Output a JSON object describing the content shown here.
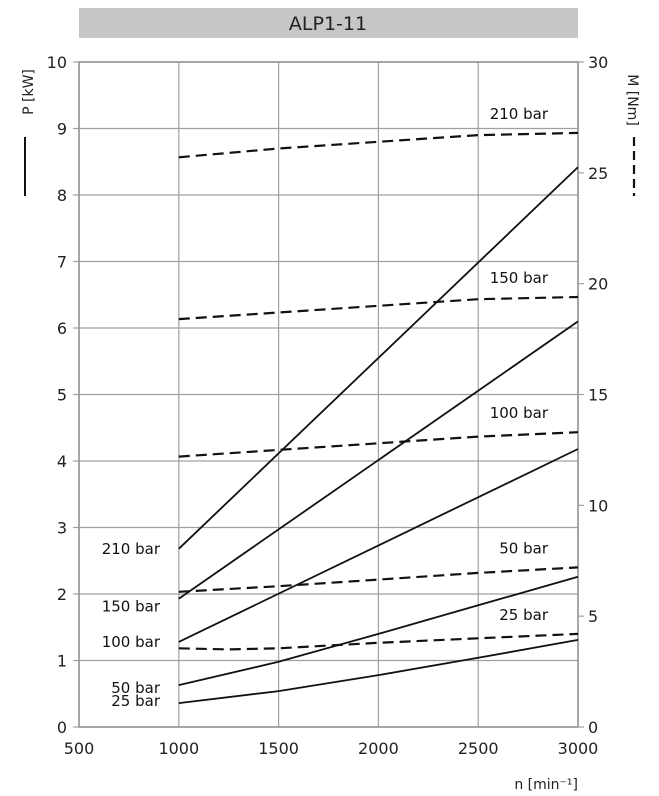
{
  "chart_data": {
    "type": "line",
    "title": "ALP1-11",
    "xlabel": "n [min⁻¹]",
    "ylabel_left": "P [kW]",
    "ylabel_right": "M [Nm]",
    "xlim": [
      500,
      3000
    ],
    "ylim_left": [
      0,
      10
    ],
    "ylim_right": [
      0,
      30
    ],
    "x_ticks": [
      500,
      1000,
      1500,
      2000,
      2500,
      3000
    ],
    "y_left_ticks": [
      0,
      1,
      2,
      3,
      4,
      5,
      6,
      7,
      8,
      9,
      10
    ],
    "y_right_ticks": [
      0,
      5,
      10,
      15,
      20,
      25,
      30
    ],
    "grid": true,
    "legend": [
      {
        "axis": "left",
        "style": "solid"
      },
      {
        "axis": "right",
        "style": "dashed"
      }
    ],
    "series": [
      {
        "name": "210 bar",
        "axis": "left",
        "style": "solid",
        "x": [
          1000,
          3000
        ],
        "values": [
          2.68,
          8.42
        ]
      },
      {
        "name": "150 bar",
        "axis": "left",
        "style": "solid",
        "x": [
          1000,
          3000
        ],
        "values": [
          1.93,
          6.1
        ]
      },
      {
        "name": "100 bar",
        "axis": "left",
        "style": "solid",
        "x": [
          1000,
          3000
        ],
        "values": [
          1.28,
          4.18
        ]
      },
      {
        "name": "50 bar",
        "axis": "left",
        "style": "solid",
        "x": [
          1000,
          1500,
          2000,
          2500,
          3000
        ],
        "values": [
          0.63,
          0.98,
          1.4,
          1.83,
          2.26
        ]
      },
      {
        "name": "25 bar",
        "axis": "left",
        "style": "solid",
        "x": [
          1000,
          1500,
          2000,
          2500,
          3000
        ],
        "values": [
          0.36,
          0.54,
          0.78,
          1.04,
          1.31
        ]
      },
      {
        "name": "210 bar",
        "axis": "right",
        "style": "dashed",
        "x": [
          1000,
          1500,
          2000,
          2500,
          3000
        ],
        "values": [
          25.7,
          26.1,
          26.4,
          26.7,
          26.8
        ]
      },
      {
        "name": "150 bar",
        "axis": "right",
        "style": "dashed",
        "x": [
          1000,
          1500,
          2000,
          2500,
          3000
        ],
        "values": [
          18.4,
          18.7,
          19.0,
          19.3,
          19.4
        ]
      },
      {
        "name": "100 bar",
        "axis": "right",
        "style": "dashed",
        "x": [
          1000,
          1500,
          2000,
          2500,
          3000
        ],
        "values": [
          12.2,
          12.5,
          12.8,
          13.1,
          13.3
        ]
      },
      {
        "name": "50 bar",
        "axis": "right",
        "style": "dashed",
        "x": [
          1000,
          1500,
          2000,
          2500,
          3000
        ],
        "values": [
          6.1,
          6.35,
          6.65,
          6.95,
          7.2
        ]
      },
      {
        "name": "25 bar",
        "axis": "right",
        "style": "dashed",
        "x": [
          1000,
          1250,
          1500,
          2000,
          2500,
          3000
        ],
        "values": [
          3.55,
          3.5,
          3.55,
          3.8,
          4.0,
          4.2
        ]
      }
    ],
    "annotations": {
      "left": [
        "210 bar",
        "150 bar",
        "100 bar",
        "50 bar",
        "25 bar"
      ],
      "right": [
        "210 bar",
        "150 bar",
        "100 bar",
        "50 bar",
        "25 bar"
      ]
    }
  }
}
